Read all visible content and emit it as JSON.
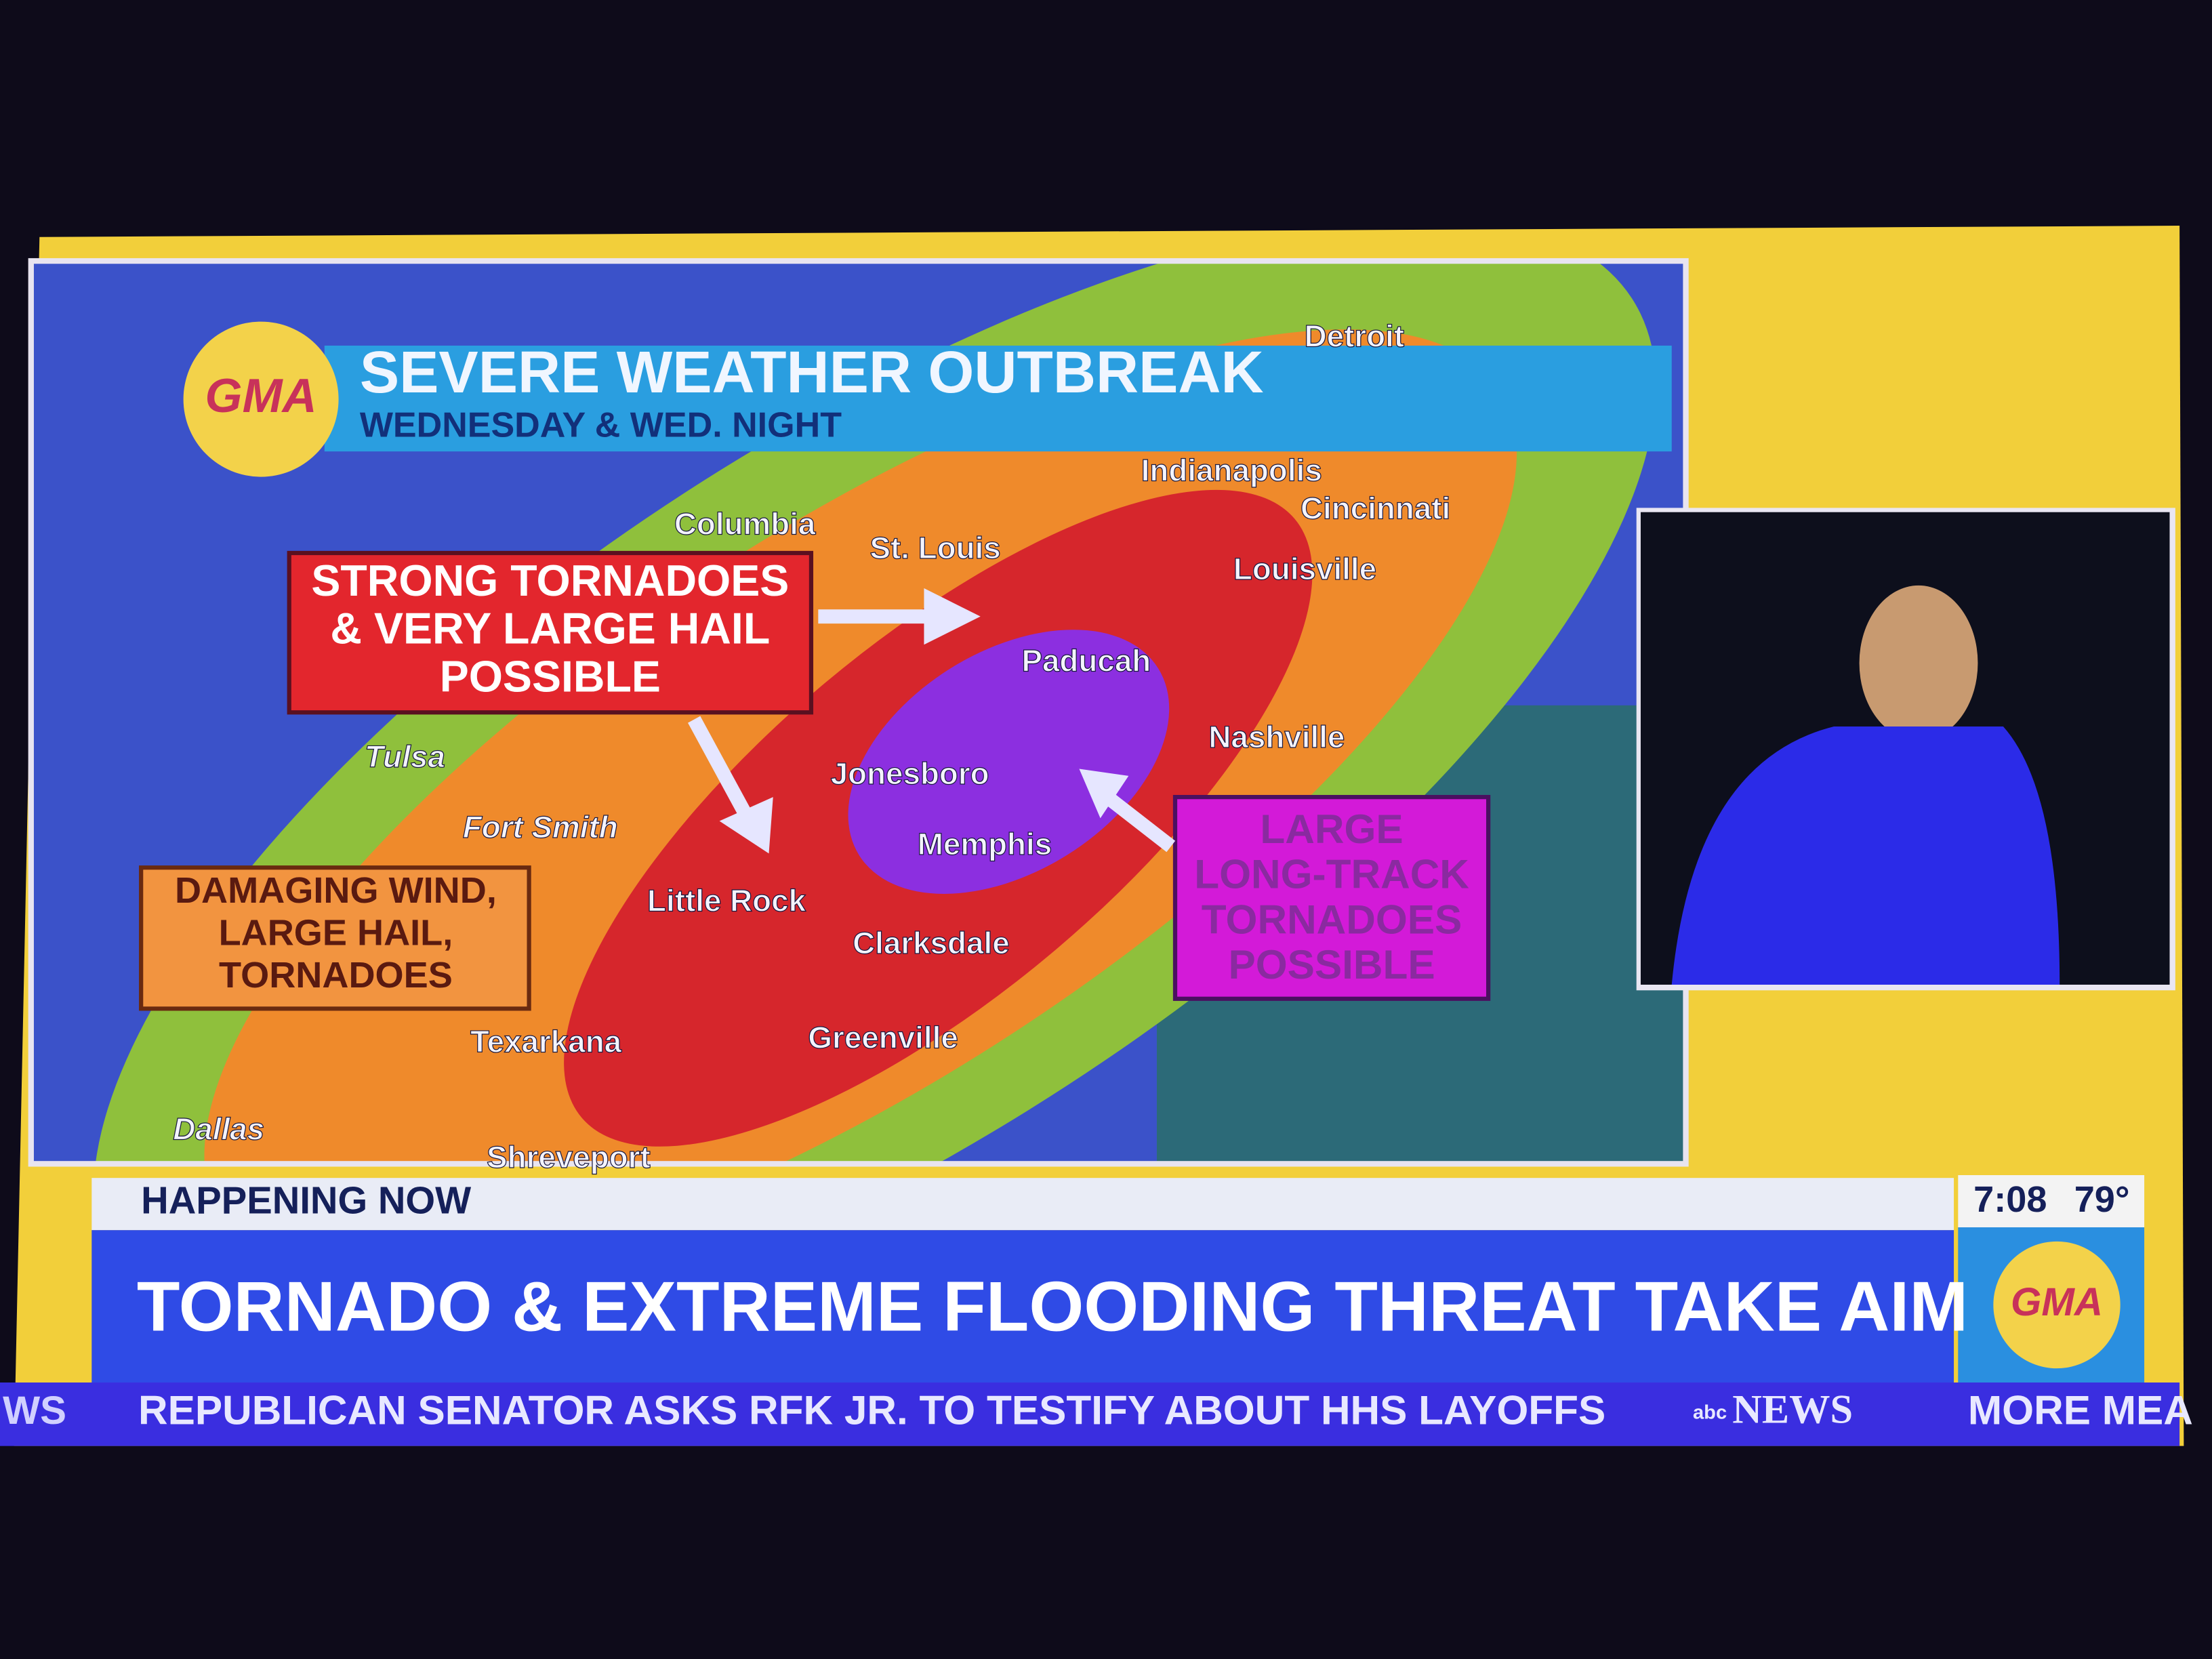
{
  "logo": "GMA",
  "header": {
    "title": "SEVERE WEATHER OUTBREAK",
    "subtitle": "WEDNESDAY & WED. NIGHT"
  },
  "cities": [
    "Detroit",
    "Indianapolis",
    "Cincinnati",
    "Columbia",
    "St. Louis",
    "Louisville",
    "Paducah",
    "Nashville",
    "Tulsa",
    "Fort Smith",
    "Jonesboro",
    "Memphis",
    "Little Rock",
    "Clarksdale",
    "Texarkana",
    "Greenville",
    "Dallas",
    "Shreveport"
  ],
  "callouts": {
    "red": [
      "STRONG TORNADOES",
      "& VERY LARGE HAIL",
      "POSSIBLE"
    ],
    "orange": [
      "DAMAGING WIND,",
      "LARGE HAIL,",
      "TORNADOES"
    ],
    "purple": [
      "LARGE",
      "LONG-TRACK",
      "TORNADOES",
      "POSSIBLE"
    ]
  },
  "lower_third": {
    "label": "HAPPENING NOW",
    "headline": "TORNADO & EXTREME FLOODING THREAT TAKE AIM",
    "time": "7:08",
    "temperature": "79°"
  },
  "ticker": {
    "left_fragment": "WS",
    "text": "REPUBLICAN SENATOR ASKS RFK JR. TO TESTIFY ABOUT HHS LAYOFFS",
    "network_small": "abc",
    "network": "NEWS",
    "right_fragment": "MORE MEA"
  }
}
